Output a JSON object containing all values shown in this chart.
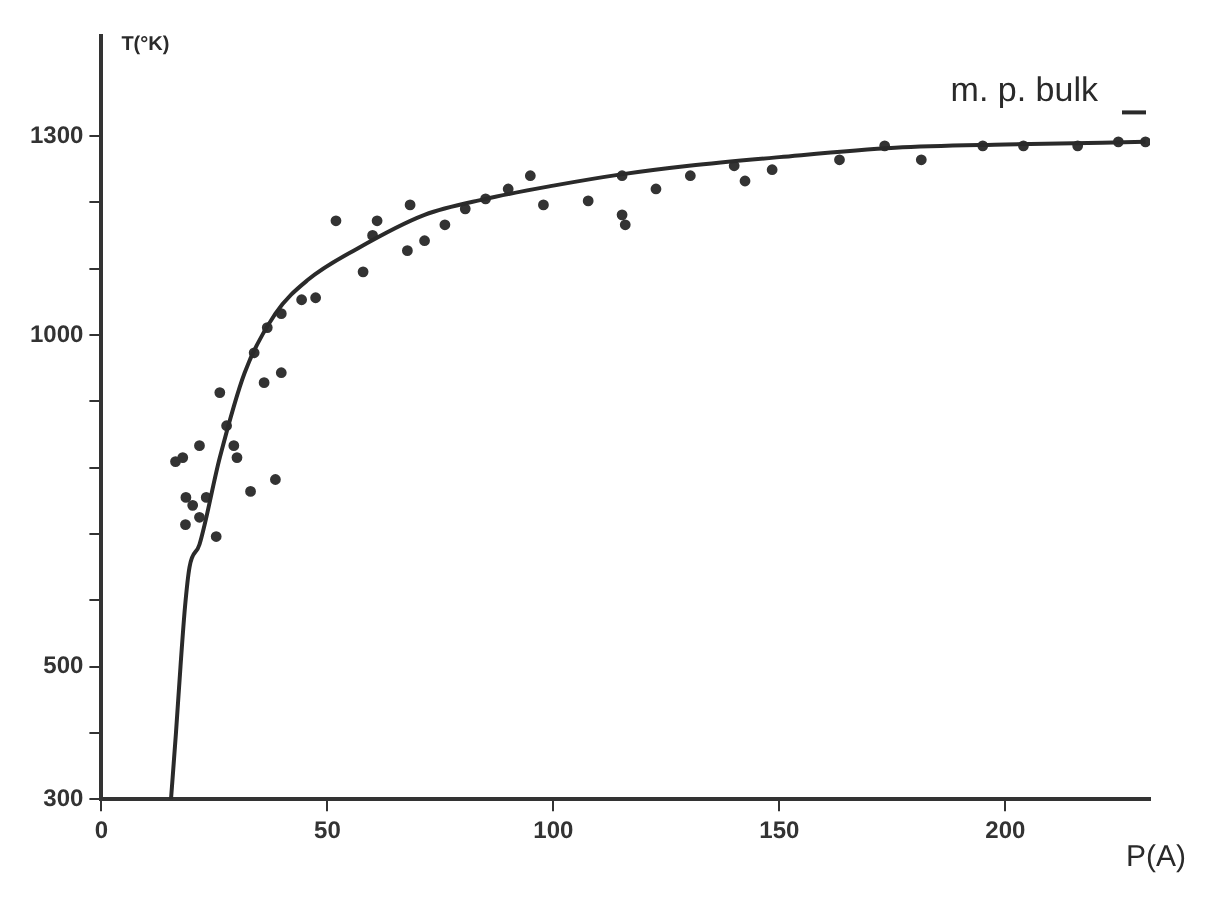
{
  "chart_data": {
    "type": "scatter",
    "xlabel": "P(A)",
    "ylabel": "T(°K)",
    "xlim": [
      0,
      232
    ],
    "ylim": [
      300,
      1450
    ],
    "xticks": [
      0,
      50,
      100,
      150,
      200
    ],
    "yticks": [
      300,
      {
        "value": 400,
        "label": null
      },
      500,
      {
        "value": 600,
        "label": null
      },
      {
        "value": 700,
        "label": null
      },
      {
        "value": 800,
        "label": null
      },
      {
        "value": 900,
        "label": null
      },
      1000,
      {
        "value": 1100,
        "label": null
      },
      {
        "value": 1200,
        "label": null
      },
      1300
    ],
    "grid": false,
    "legend": false,
    "annotations": [
      "m. p. bulk"
    ],
    "series": [
      {
        "type": "line",
        "color": "#2a2a2a",
        "marker": "none",
        "line_style": "solid",
        "x": [
          15.4,
          16.5,
          17.5,
          18.5,
          19.5,
          21.7,
          26.2,
          31.7,
          38.5,
          45.7,
          56.6,
          71.5,
          85,
          100,
          115,
          130,
          150,
          175.6,
          200,
          231
        ],
        "values": [
          300,
          400,
          500,
          590,
          650,
          684,
          815,
          943,
          1032,
          1083,
          1130,
          1181,
          1205,
          1225,
          1242,
          1255,
          1268,
          1282,
          1287,
          1291
        ]
      },
      {
        "type": "scatter",
        "color": "#333333",
        "marker": "circle",
        "x": [
          16.4,
          18,
          18.7,
          20.2,
          23.2,
          21.7,
          18.6,
          25.4,
          33,
          38.5,
          21.7,
          26.2,
          29.3,
          30,
          27.7,
          36,
          39.8,
          33.8,
          39.8,
          44.3,
          36.7,
          47.4,
          51.9,
          57.9,
          61,
          67.7,
          71.5,
          76,
          68.3,
          80.5,
          85,
          94.9,
          97.8,
          107.7,
          115.2,
          115.9,
          115.2,
          122.7,
          130.3,
          142.4,
          148.4,
          173.3,
          181.4,
          163.3,
          204,
          216,
          225,
          231,
          60,
          90,
          140,
          195
        ],
        "values": [
          809,
          815,
          755,
          743,
          755,
          725,
          714,
          696,
          764,
          782,
          833,
          913,
          833,
          815,
          863,
          928,
          943,
          973,
          1032,
          1053,
          1011,
          1056,
          1172,
          1095,
          1172,
          1127,
          1142,
          1166,
          1196,
          1190,
          1205,
          1240,
          1196,
          1202,
          1181,
          1166,
          1240,
          1220,
          1240,
          1232,
          1249,
          1285,
          1264,
          1264,
          1285,
          1285,
          1291,
          1291,
          1150,
          1220,
          1255,
          1285
        ]
      }
    ]
  }
}
